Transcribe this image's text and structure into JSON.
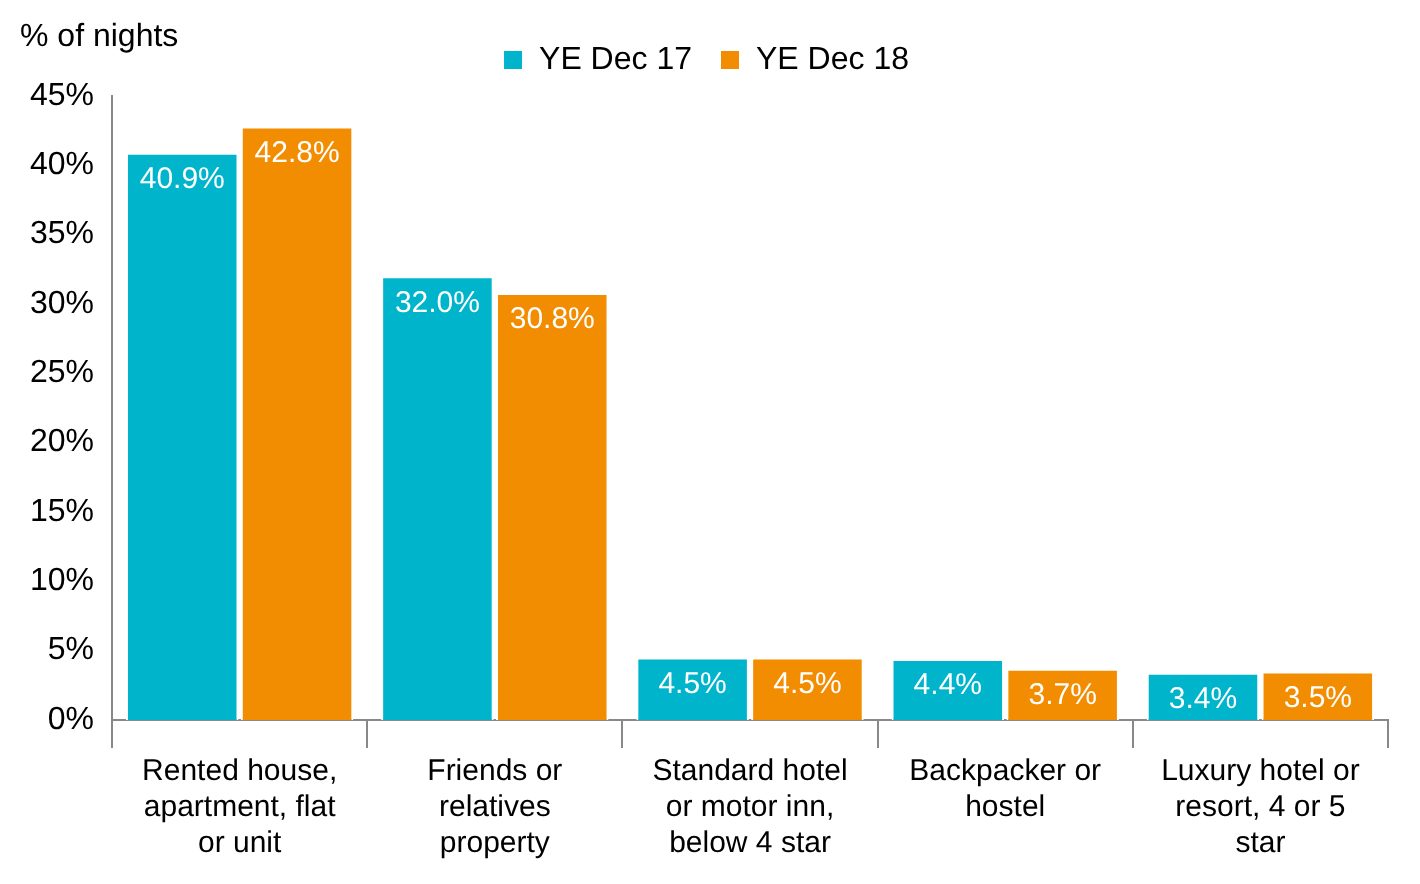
{
  "chart_data": {
    "type": "bar",
    "ylabel": "% of nights",
    "categories": [
      "Rented house, apartment, flat or unit",
      "Friends or relatives property",
      "Standard hotel or motor inn, below 4 star",
      "Backpacker or hostel",
      "Luxury hotel or resort, 4 or 5 star"
    ],
    "series": [
      {
        "name": "YE Dec 17",
        "color": "#00b4cc",
        "values": [
          40.9,
          32.0,
          4.5,
          4.4,
          3.4
        ],
        "value_labels": [
          "40.9%",
          "32.0%",
          "4.5%",
          "4.4%",
          "3.4%"
        ]
      },
      {
        "name": "YE Dec 18",
        "color": "#f28c00",
        "values": [
          42.8,
          30.8,
          4.5,
          3.7,
          3.5
        ],
        "value_labels": [
          "42.8%",
          "30.8%",
          "4.5%",
          "3.7%",
          "3.5%"
        ]
      }
    ],
    "ylim": [
      0,
      45
    ],
    "yticks": [
      {
        "value": 0,
        "label": "0%"
      },
      {
        "value": 5,
        "label": "5%"
      },
      {
        "value": 10,
        "label": "10%"
      },
      {
        "value": 15,
        "label": "15%"
      },
      {
        "value": 20,
        "label": "20%"
      },
      {
        "value": 25,
        "label": "25%"
      },
      {
        "value": 30,
        "label": "30%"
      },
      {
        "value": 35,
        "label": "35%"
      },
      {
        "value": 40,
        "label": "40%"
      },
      {
        "value": 45,
        "label": "45%"
      }
    ],
    "legend": "top"
  }
}
